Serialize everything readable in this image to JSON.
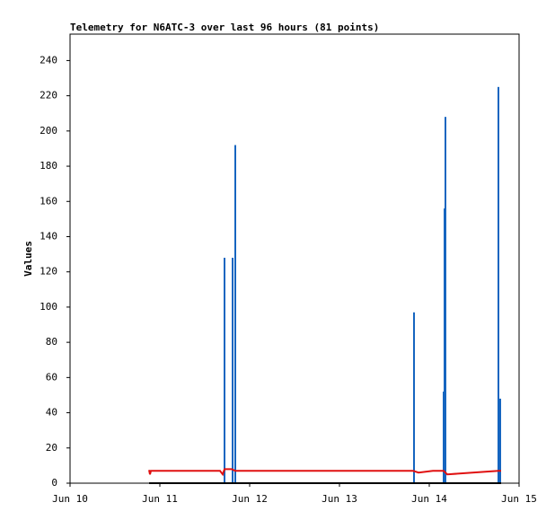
{
  "chart_data": {
    "type": "line",
    "title": "Telemetry for N6ATC-3 over last 96 hours (81 points)",
    "y_label": "Values",
    "xlim": [
      10,
      15
    ],
    "xticks": [
      {
        "value": 10,
        "label": "Jun 10"
      },
      {
        "value": 11,
        "label": "Jun 11"
      },
      {
        "value": 12,
        "label": "Jun 12"
      },
      {
        "value": 13,
        "label": "Jun 13"
      },
      {
        "value": 14,
        "label": "Jun 14"
      },
      {
        "value": 15,
        "label": "Jun 15"
      }
    ],
    "ylim": [
      0,
      255
    ],
    "yticks": [
      0,
      20,
      40,
      60,
      80,
      100,
      120,
      140,
      160,
      180,
      200,
      220,
      240
    ],
    "series": [
      {
        "type": "bar",
        "color": "#1565c0",
        "x": [
          11.72,
          11.81,
          11.84,
          13.83,
          14.16,
          14.17,
          14.18,
          14.77,
          14.79
        ],
        "values": [
          128,
          128,
          192,
          97,
          52,
          156,
          208,
          225,
          48
        ]
      },
      {
        "type": "line",
        "color": "#e01010",
        "x": [
          10.88,
          10.89,
          10.9,
          11.67,
          11.7,
          11.72,
          11.8,
          11.84,
          13.82,
          13.88,
          14.04,
          14.16,
          14.2,
          14.77,
          14.8
        ],
        "values": [
          7.5,
          5,
          7,
          7,
          5,
          8,
          8,
          7,
          7,
          6,
          7,
          7,
          5,
          7,
          7
        ]
      },
      {
        "type": "line",
        "color": "#000000",
        "x": [
          10.88,
          14.8
        ],
        "values": [
          0,
          0
        ]
      }
    ]
  }
}
